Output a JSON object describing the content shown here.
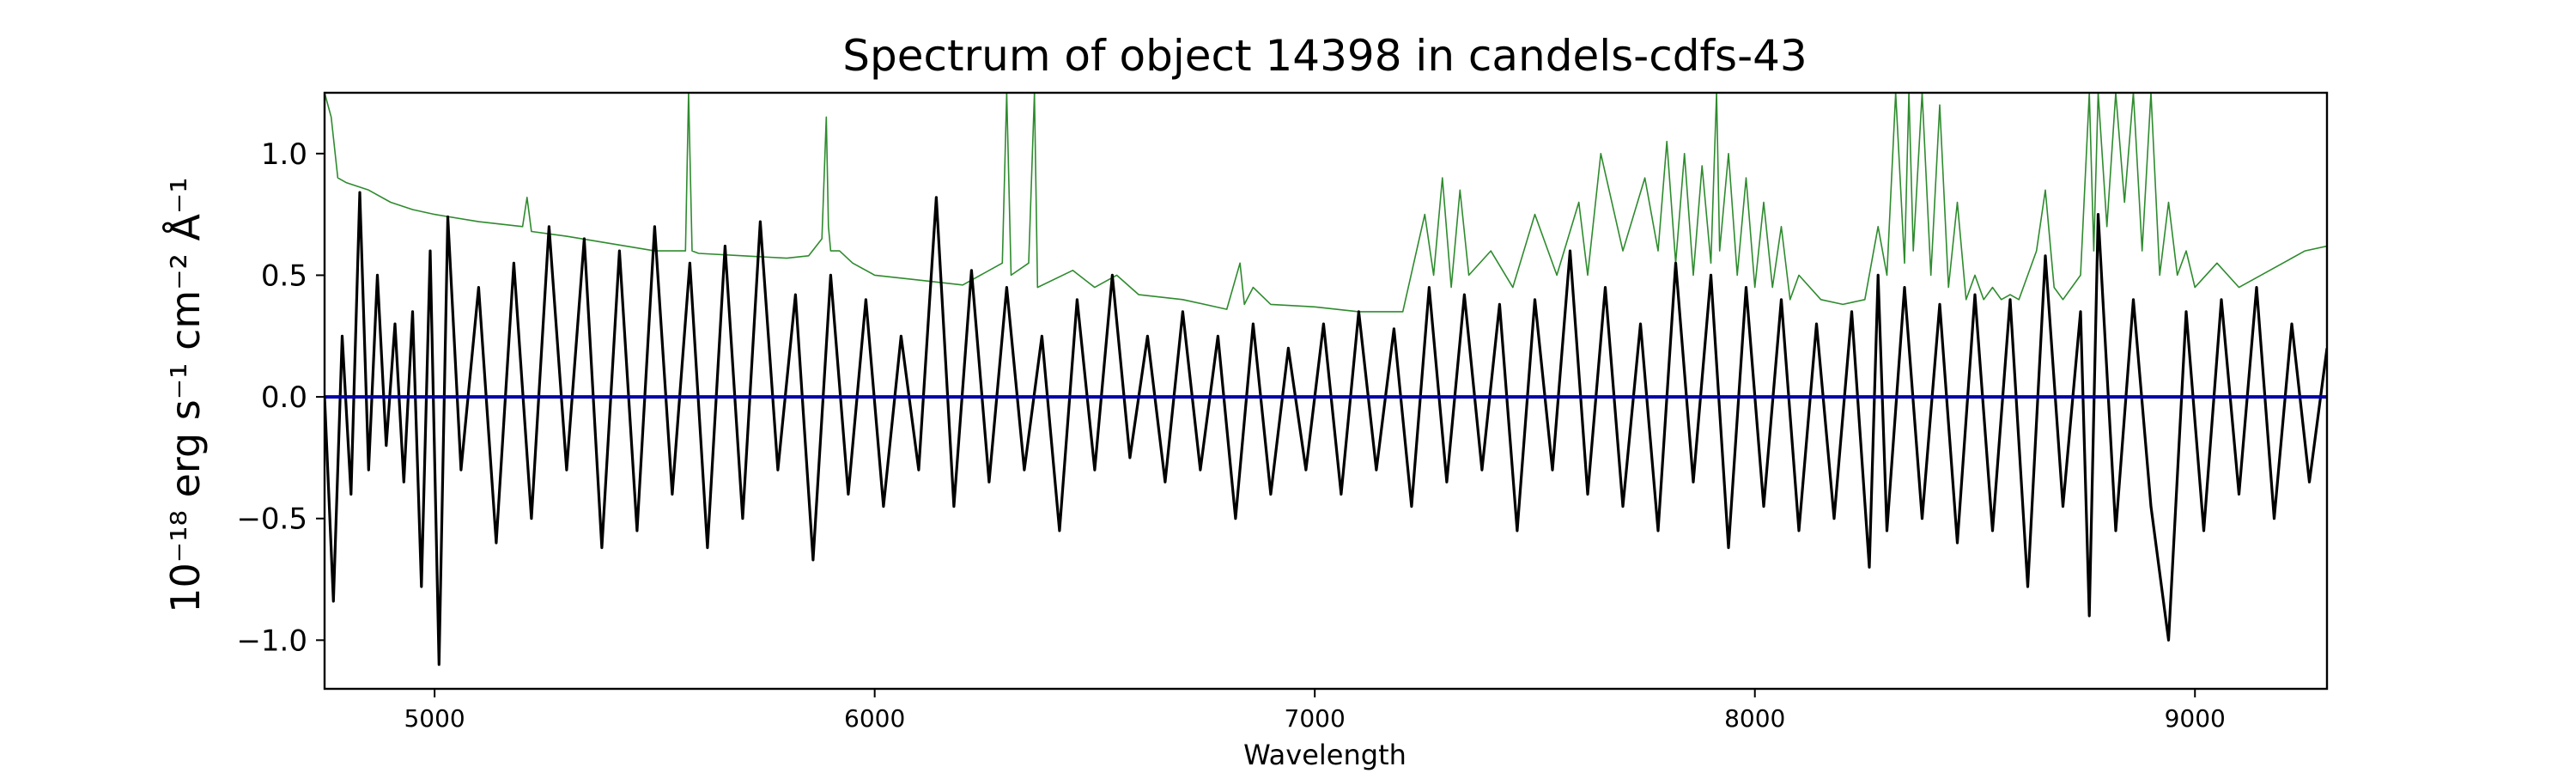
{
  "chart_data": {
    "type": "line",
    "title": "Spectrum of object 14398 in candels-cdfs-43",
    "xlabel": "Wavelength",
    "ylabel": "10⁻¹⁸ erg s⁻¹ cm⁻² Å⁻¹",
    "xlim": [
      4750,
      9300
    ],
    "ylim": [
      -1.2,
      1.25
    ],
    "xticks": [
      5000,
      6000,
      7000,
      8000,
      9000
    ],
    "xtick_labels": [
      "5000",
      "6000",
      "7000",
      "8000",
      "9000"
    ],
    "yticks": [
      -1.0,
      -0.5,
      0.0,
      0.5,
      1.0
    ],
    "ytick_labels": [
      "−1.0",
      "−0.5",
      "0.0",
      "0.5",
      "1.0"
    ],
    "grid": false,
    "legend": "none",
    "series": [
      {
        "color": "#000000",
        "x": [
          4750,
          4770,
          4790,
          4810,
          4830,
          4850,
          4870,
          4890,
          4910,
          4930,
          4950,
          4970,
          4990,
          5010,
          5030,
          5060,
          5100,
          5140,
          5180,
          5220,
          5260,
          5300,
          5340,
          5380,
          5420,
          5460,
          5500,
          5540,
          5580,
          5620,
          5660,
          5700,
          5740,
          5780,
          5820,
          5860,
          5900,
          5940,
          5980,
          6020,
          6060,
          6100,
          6140,
          6180,
          6220,
          6260,
          6300,
          6340,
          6380,
          6420,
          6460,
          6500,
          6540,
          6580,
          6620,
          6660,
          6700,
          6740,
          6780,
          6820,
          6860,
          6900,
          6940,
          6980,
          7020,
          7060,
          7100,
          7140,
          7180,
          7220,
          7260,
          7300,
          7340,
          7380,
          7420,
          7460,
          7500,
          7540,
          7580,
          7620,
          7660,
          7700,
          7740,
          7780,
          7820,
          7860,
          7900,
          7940,
          7980,
          8020,
          8060,
          8100,
          8140,
          8180,
          8220,
          8260,
          8280,
          8300,
          8340,
          8380,
          8420,
          8460,
          8500,
          8540,
          8580,
          8620,
          8660,
          8700,
          8740,
          8760,
          8780,
          8820,
          8860,
          8900,
          8940,
          8980,
          9020,
          9060,
          9100,
          9140,
          9180,
          9220,
          9260,
          9300
        ],
        "y": [
          0.0,
          -0.84,
          0.25,
          -0.4,
          0.84,
          -0.3,
          0.5,
          -0.2,
          0.3,
          -0.35,
          0.35,
          -0.78,
          0.6,
          -1.1,
          0.74,
          -0.3,
          0.45,
          -0.6,
          0.55,
          -0.5,
          0.7,
          -0.3,
          0.65,
          -0.62,
          0.6,
          -0.55,
          0.7,
          -0.4,
          0.55,
          -0.62,
          0.62,
          -0.5,
          0.72,
          -0.3,
          0.42,
          -0.67,
          0.5,
          -0.4,
          0.4,
          -0.45,
          0.25,
          -0.3,
          0.82,
          -0.45,
          0.52,
          -0.35,
          0.45,
          -0.3,
          0.25,
          -0.55,
          0.4,
          -0.3,
          0.5,
          -0.25,
          0.25,
          -0.35,
          0.35,
          -0.3,
          0.25,
          -0.5,
          0.3,
          -0.4,
          0.2,
          -0.3,
          0.3,
          -0.4,
          0.35,
          -0.3,
          0.28,
          -0.45,
          0.45,
          -0.35,
          0.42,
          -0.3,
          0.38,
          -0.55,
          0.4,
          -0.3,
          0.6,
          -0.4,
          0.45,
          -0.45,
          0.3,
          -0.55,
          0.55,
          -0.35,
          0.5,
          -0.62,
          0.45,
          -0.45,
          0.4,
          -0.55,
          0.3,
          -0.5,
          0.35,
          -0.7,
          0.5,
          -0.55,
          0.45,
          -0.5,
          0.38,
          -0.6,
          0.42,
          -0.55,
          0.4,
          -0.78,
          0.58,
          -0.45,
          0.35,
          -0.9,
          0.75,
          -0.55,
          0.4,
          -0.45,
          -1.0,
          0.35,
          -0.55,
          0.4,
          -0.4,
          0.45,
          -0.5,
          0.3,
          -0.35,
          0.2
        ]
      },
      {
        "color": "#2e8b2e",
        "x": [
          4750,
          4765,
          4780,
          4800,
          4850,
          4900,
          4950,
          5000,
          5100,
          5200,
          5210,
          5220,
          5300,
          5400,
          5500,
          5570,
          5577,
          5585,
          5600,
          5700,
          5800,
          5850,
          5880,
          5890,
          5895,
          5900,
          5920,
          5950,
          6000,
          6100,
          6200,
          6290,
          6300,
          6310,
          6350,
          6363,
          6370,
          6450,
          6500,
          6550,
          6600,
          6700,
          6800,
          6830,
          6840,
          6860,
          6900,
          7000,
          7100,
          7200,
          7250,
          7270,
          7290,
          7310,
          7330,
          7350,
          7400,
          7450,
          7500,
          7550,
          7600,
          7620,
          7650,
          7700,
          7750,
          7780,
          7800,
          7820,
          7840,
          7860,
          7880,
          7900,
          7913,
          7920,
          7940,
          7960,
          7980,
          8000,
          8020,
          8040,
          8060,
          8080,
          8100,
          8150,
          8200,
          8250,
          8280,
          8300,
          8320,
          8340,
          8350,
          8360,
          8380,
          8400,
          8420,
          8440,
          8460,
          8480,
          8500,
          8520,
          8540,
          8560,
          8580,
          8600,
          8620,
          8640,
          8660,
          8680,
          8700,
          8720,
          8740,
          8760,
          8770,
          8780,
          8800,
          8820,
          8840,
          8860,
          8880,
          8900,
          8920,
          8940,
          8960,
          8980,
          9000,
          9050,
          9100,
          9150,
          9200,
          9250,
          9300
        ],
        "y": [
          1.25,
          1.15,
          0.9,
          0.88,
          0.85,
          0.8,
          0.77,
          0.75,
          0.72,
          0.7,
          0.82,
          0.68,
          0.66,
          0.63,
          0.6,
          0.6,
          1.25,
          0.6,
          0.59,
          0.58,
          0.57,
          0.58,
          0.65,
          1.15,
          0.7,
          0.6,
          0.6,
          0.55,
          0.5,
          0.48,
          0.46,
          0.55,
          1.25,
          0.5,
          0.55,
          1.25,
          0.45,
          0.52,
          0.45,
          0.5,
          0.42,
          0.4,
          0.36,
          0.55,
          0.38,
          0.45,
          0.38,
          0.37,
          0.35,
          0.35,
          0.75,
          0.5,
          0.9,
          0.45,
          0.85,
          0.5,
          0.6,
          0.45,
          0.75,
          0.5,
          0.8,
          0.5,
          1.0,
          0.6,
          0.9,
          0.6,
          1.05,
          0.55,
          1.0,
          0.5,
          0.95,
          0.55,
          1.25,
          0.6,
          1.0,
          0.5,
          0.9,
          0.45,
          0.8,
          0.45,
          0.7,
          0.4,
          0.5,
          0.4,
          0.38,
          0.4,
          0.7,
          0.5,
          1.25,
          0.55,
          1.25,
          0.6,
          1.25,
          0.5,
          1.2,
          0.45,
          0.8,
          0.4,
          0.5,
          0.4,
          0.45,
          0.4,
          0.42,
          0.4,
          0.5,
          0.6,
          0.85,
          0.45,
          0.4,
          0.45,
          0.5,
          1.25,
          0.6,
          1.25,
          0.7,
          1.25,
          0.8,
          1.25,
          0.6,
          1.25,
          0.5,
          0.8,
          0.5,
          0.6,
          0.45,
          0.55,
          0.45,
          0.5,
          0.55,
          0.6,
          0.62
        ]
      },
      {
        "color": "#0000aa",
        "x": [
          4750,
          9300
        ],
        "y": [
          0.0,
          0.0
        ]
      }
    ]
  }
}
